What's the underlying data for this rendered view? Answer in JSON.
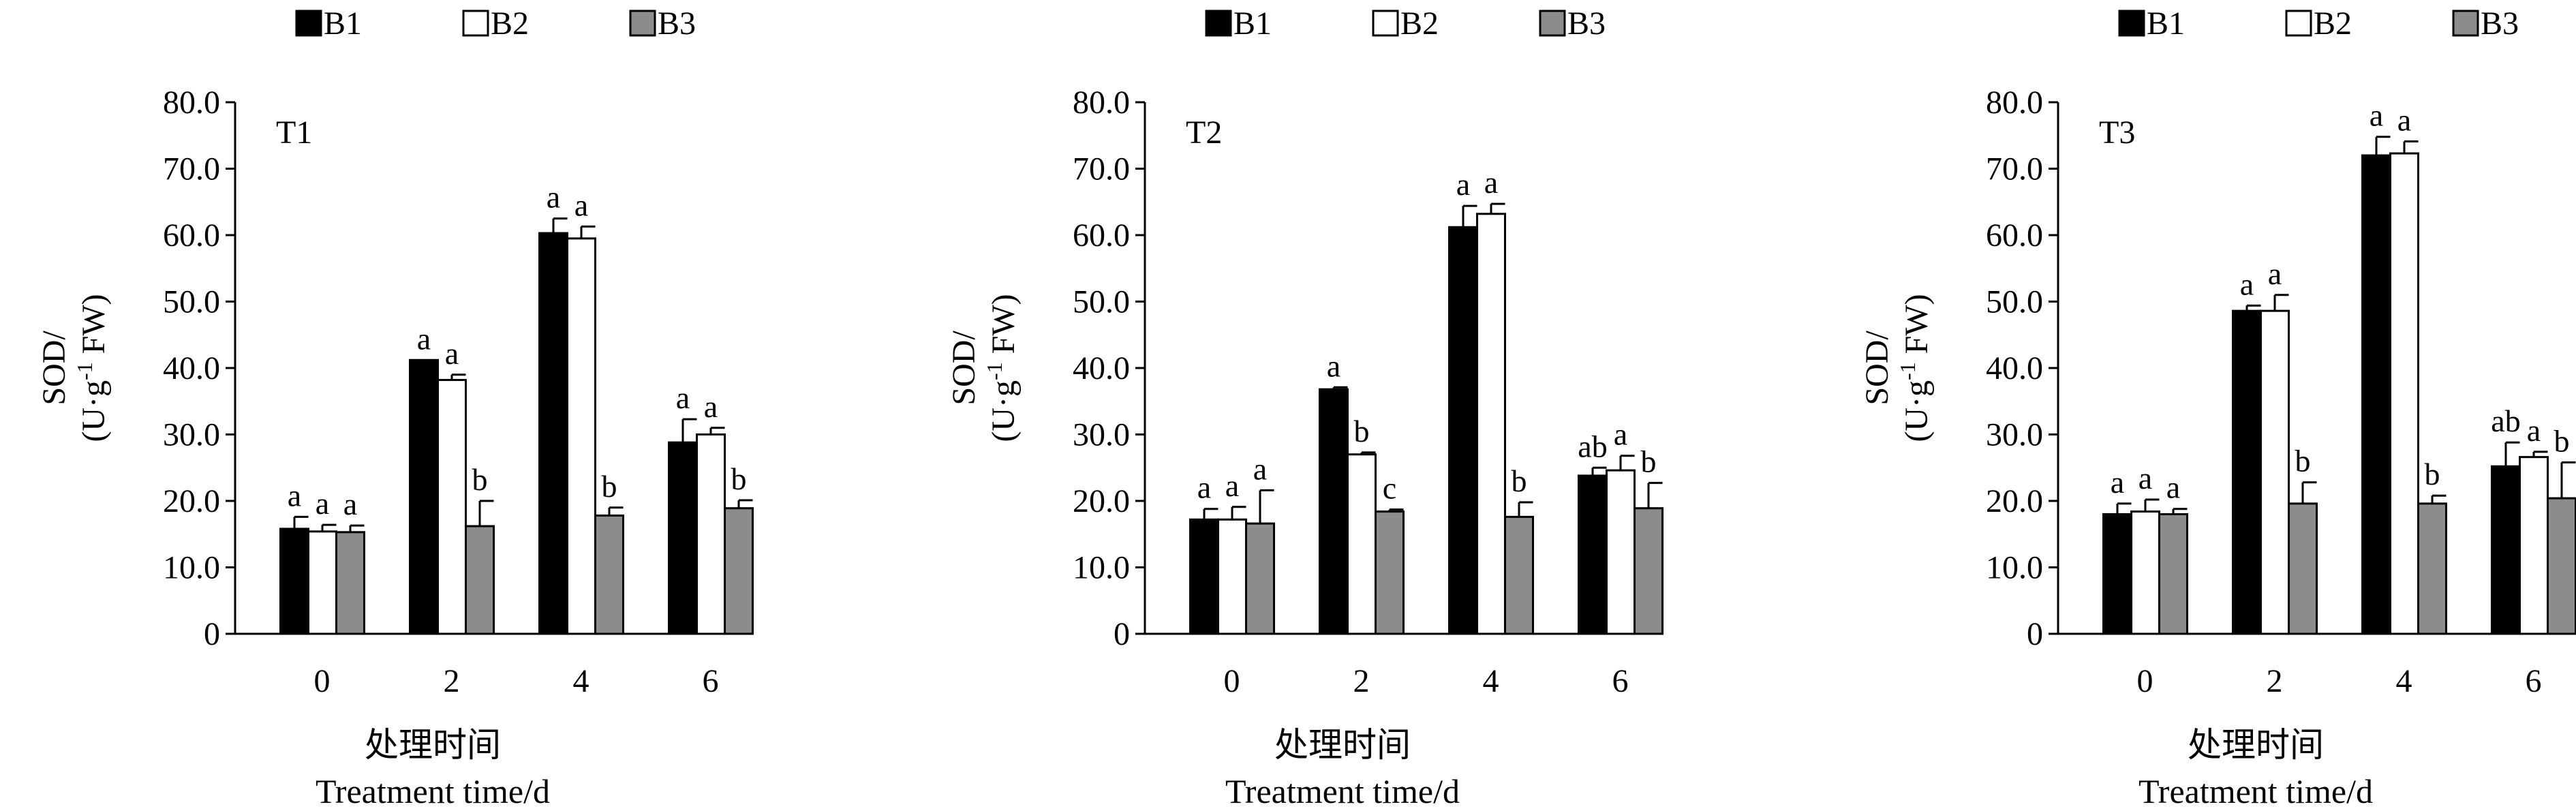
{
  "colors": {
    "B1": "#000000",
    "B2": "#ffffff",
    "B3": "#8c8c8c"
  },
  "chart_data": [
    {
      "type": "bar",
      "title": "T1",
      "categories": [
        "0",
        "2",
        "4",
        "6"
      ],
      "series": [
        {
          "name": "B1",
          "values": [
            15.8,
            41.2,
            60.3,
            28.8
          ],
          "errors": [
            1.8,
            0,
            2.2,
            3.5
          ],
          "letters": [
            "a",
            "a",
            "a",
            "a"
          ]
        },
        {
          "name": "B2",
          "values": [
            15.4,
            38.2,
            59.5,
            30.0
          ],
          "errors": [
            1.0,
            0.8,
            1.8,
            1.0
          ],
          "letters": [
            "a",
            "a",
            "a",
            "a"
          ]
        },
        {
          "name": "B3",
          "values": [
            15.3,
            16.2,
            17.8,
            18.9
          ],
          "errors": [
            1.0,
            3.8,
            1.2,
            1.2
          ],
          "letters": [
            "a",
            "b",
            "b",
            "b"
          ]
        }
      ],
      "ylim": [
        0,
        80
      ],
      "yticks": [
        "0",
        "10.0",
        "20.0",
        "30.0",
        "40.0",
        "50.0",
        "60.0",
        "70.0",
        "80.0"
      ],
      "ylabel_line1": "SOD/",
      "ylabel_line2_a": "(U·g",
      "ylabel_line2_sup": "-1",
      "ylabel_line2_b": " FW)",
      "xlabel_cn": "处理时间",
      "xlabel_en": "Treatment time/d"
    },
    {
      "type": "bar",
      "title": "T2",
      "categories": [
        "0",
        "2",
        "4",
        "6"
      ],
      "series": [
        {
          "name": "B1",
          "values": [
            17.2,
            36.8,
            61.2,
            23.8
          ],
          "errors": [
            1.6,
            0.3,
            3.2,
            1.2
          ],
          "letters": [
            "a",
            "a",
            "a",
            "ab"
          ]
        },
        {
          "name": "B2",
          "values": [
            17.2,
            27.0,
            63.2,
            24.6
          ],
          "errors": [
            1.9,
            0.3,
            1.5,
            2.2
          ],
          "letters": [
            "a",
            "b",
            "a",
            "a"
          ]
        },
        {
          "name": "B3",
          "values": [
            16.6,
            18.4,
            17.6,
            18.9
          ],
          "errors": [
            5.0,
            0.3,
            2.2,
            3.8
          ],
          "letters": [
            "a",
            "c",
            "b",
            "b"
          ]
        }
      ],
      "ylim": [
        0,
        80
      ],
      "yticks": [
        "0",
        "10.0",
        "20.0",
        "30.0",
        "40.0",
        "50.0",
        "60.0",
        "70.0",
        "80.0"
      ],
      "ylabel_line1": "SOD/",
      "ylabel_line2_a": "(U·g",
      "ylabel_line2_sup": "-1",
      "ylabel_line2_b": " FW)",
      "xlabel_cn": "处理时间",
      "xlabel_en": "Treatment time/d"
    },
    {
      "type": "bar",
      "title": "T3",
      "categories": [
        "0",
        "2",
        "4",
        "6"
      ],
      "series": [
        {
          "name": "B1",
          "values": [
            18.0,
            48.6,
            72.0,
            25.2
          ],
          "errors": [
            1.6,
            0.8,
            2.8,
            3.6
          ],
          "letters": [
            "a",
            "a",
            "a",
            "ab"
          ]
        },
        {
          "name": "B2",
          "values": [
            18.4,
            48.6,
            72.3,
            26.6
          ],
          "errors": [
            1.8,
            2.4,
            1.8,
            0.8
          ],
          "letters": [
            "a",
            "a",
            "a",
            "a"
          ]
        },
        {
          "name": "B3",
          "values": [
            18.0,
            19.6,
            19.6,
            20.4
          ],
          "errors": [
            0.8,
            3.2,
            1.2,
            5.4
          ],
          "letters": [
            "a",
            "b",
            "b",
            "b"
          ]
        }
      ],
      "ylim": [
        0,
        80
      ],
      "yticks": [
        "0",
        "10.0",
        "20.0",
        "30.0",
        "40.0",
        "50.0",
        "60.0",
        "70.0",
        "80.0"
      ],
      "ylabel_line1": "SOD/",
      "ylabel_line2_a": "(U·g",
      "ylabel_line2_sup": "-1",
      "ylabel_line2_b": " FW)",
      "xlabel_cn": "处理时间",
      "xlabel_en": "Treatment time/d"
    }
  ]
}
